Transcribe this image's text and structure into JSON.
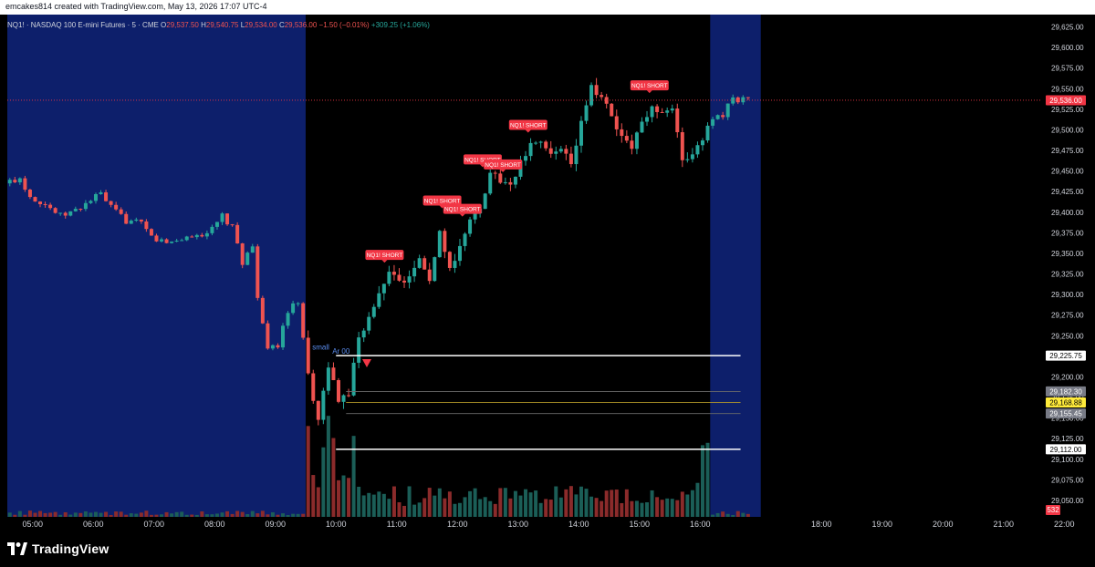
{
  "credit": "emcakes814 created with TradingView.com, May 13, 2026 17:07 UTC-4",
  "brand": "TradingView",
  "icons": {
    "logo": "tradingview-logo-icon",
    "signal_marker": "triangle-down-icon"
  },
  "colors": {
    "up": "#26a69a",
    "down": "#ef5350",
    "session_bg": "#0d1f6b",
    "price_tag": "#f23645",
    "yellow_tag": "#ffeb3b",
    "grey_tag": "#787b86"
  },
  "legend": {
    "symbol": "NQ1! · NASDAQ 100 E-mini Futures · 5 · CME",
    "o_label": "O",
    "o_value": "29,537.50",
    "h_label": "H",
    "h_value": "29,540.75",
    "l_label": "L",
    "l_value": "29,534.00",
    "c_label": "C",
    "c_value": "29,536.00",
    "change": "−1.50 (−0.01%)",
    "extra": "+309.25 (+1.06%)"
  },
  "chart_data": {
    "type": "candlestick",
    "symbol": "NQ1!",
    "interval_minutes": 5,
    "x_ticks": [
      "05:00",
      "06:00",
      "07:00",
      "08:00",
      "09:00",
      "10:00",
      "11:00",
      "12:00",
      "13:00",
      "14:00",
      "15:00",
      "16:00",
      "18:00",
      "19:00",
      "20:00",
      "21:00",
      "22:00"
    ],
    "y_ticks": [
      "29,625.00",
      "29,600.00",
      "29,575.00",
      "29,550.00",
      "29,525.00",
      "29,500.00",
      "29,475.00",
      "29,450.00",
      "29,425.00",
      "29,400.00",
      "29,375.00",
      "29,350.00",
      "29,325.00",
      "29,300.00",
      "29,275.00",
      "29,250.00",
      "29,225.00",
      "29,200.00",
      "29,175.00",
      "29,150.00",
      "29,125.00",
      "29,100.00",
      "29,075.00",
      "29,050.00"
    ],
    "ylim": [
      29030,
      29640
    ],
    "grid": false,
    "sessions": [
      {
        "start": "04:35",
        "end": "09:30",
        "shade": "extended"
      },
      {
        "start": "09:30",
        "end": "16:10",
        "shade": "regular"
      },
      {
        "start": "16:10",
        "end": "17:00",
        "shade": "extended"
      }
    ],
    "candles_outline": [
      {
        "time": "04:35",
        "price": 29435
      },
      {
        "time": "04:50",
        "price": 29442
      },
      {
        "time": "05:00",
        "price": 29420
      },
      {
        "time": "05:15",
        "price": 29410
      },
      {
        "time": "05:30",
        "price": 29395
      },
      {
        "time": "05:45",
        "price": 29402
      },
      {
        "time": "06:00",
        "price": 29415
      },
      {
        "time": "06:10",
        "price": 29422
      },
      {
        "time": "06:20",
        "price": 29405
      },
      {
        "time": "06:35",
        "price": 29390
      },
      {
        "time": "06:50",
        "price": 29385
      },
      {
        "time": "07:00",
        "price": 29370
      },
      {
        "time": "07:15",
        "price": 29362
      },
      {
        "time": "07:30",
        "price": 29368
      },
      {
        "time": "07:45",
        "price": 29372
      },
      {
        "time": "08:00",
        "price": 29378
      },
      {
        "time": "08:10",
        "price": 29395
      },
      {
        "time": "08:20",
        "price": 29380
      },
      {
        "time": "08:30",
        "price": 29340
      },
      {
        "time": "08:40",
        "price": 29358
      },
      {
        "time": "08:45",
        "price": 29300
      },
      {
        "time": "08:55",
        "price": 29230
      },
      {
        "time": "09:05",
        "price": 29240
      },
      {
        "time": "09:15",
        "price": 29280
      },
      {
        "time": "09:25",
        "price": 29290
      },
      {
        "time": "09:35",
        "price": 29200
      },
      {
        "time": "09:45",
        "price": 29150
      },
      {
        "time": "09:55",
        "price": 29215
      },
      {
        "time": "10:05",
        "price": 29170
      },
      {
        "time": "10:15",
        "price": 29180
      },
      {
        "time": "10:25",
        "price": 29250
      },
      {
        "time": "10:35",
        "price": 29270
      },
      {
        "time": "10:45",
        "price": 29300
      },
      {
        "time": "10:55",
        "price": 29330
      },
      {
        "time": "11:05",
        "price": 29315
      },
      {
        "time": "11:15",
        "price": 29320
      },
      {
        "time": "11:25",
        "price": 29340
      },
      {
        "time": "11:35",
        "price": 29320
      },
      {
        "time": "11:45",
        "price": 29375
      },
      {
        "time": "11:55",
        "price": 29330
      },
      {
        "time": "12:05",
        "price": 29360
      },
      {
        "time": "12:15",
        "price": 29395
      },
      {
        "time": "12:25",
        "price": 29400
      },
      {
        "time": "12:35",
        "price": 29445
      },
      {
        "time": "12:45",
        "price": 29440
      },
      {
        "time": "12:55",
        "price": 29430
      },
      {
        "time": "13:05",
        "price": 29460
      },
      {
        "time": "13:15",
        "price": 29480
      },
      {
        "time": "13:25",
        "price": 29482
      },
      {
        "time": "13:35",
        "price": 29470
      },
      {
        "time": "13:45",
        "price": 29480
      },
      {
        "time": "13:55",
        "price": 29460
      },
      {
        "time": "14:05",
        "price": 29510
      },
      {
        "time": "14:15",
        "price": 29550
      },
      {
        "time": "14:25",
        "price": 29540
      },
      {
        "time": "14:35",
        "price": 29520
      },
      {
        "time": "14:45",
        "price": 29490
      },
      {
        "time": "14:55",
        "price": 29475
      },
      {
        "time": "15:05",
        "price": 29510
      },
      {
        "time": "15:15",
        "price": 29525
      },
      {
        "time": "15:25",
        "price": 29522
      },
      {
        "time": "15:35",
        "price": 29530
      },
      {
        "time": "15:45",
        "price": 29462
      },
      {
        "time": "15:55",
        "price": 29468
      },
      {
        "time": "16:05",
        "price": 29490
      },
      {
        "time": "16:15",
        "price": 29515
      },
      {
        "time": "16:25",
        "price": 29520
      },
      {
        "time": "16:35",
        "price": 29538
      },
      {
        "time": "16:45",
        "price": 29537
      }
    ],
    "annotations": [
      {
        "text": "NQ1! SHORT",
        "time": "10:48",
        "price": 29342
      },
      {
        "text": "NQ1! SHORT",
        "time": "11:45",
        "price": 29408
      },
      {
        "text": "NQ1! SHORT",
        "time": "12:05",
        "price": 29398
      },
      {
        "text": "NQ1! SHORT",
        "time": "12:25",
        "price": 29458
      },
      {
        "text": "NQ1! SHORT",
        "time": "12:45",
        "price": 29452
      },
      {
        "text": "NQ1! SHORT",
        "time": "13:10",
        "price": 29500
      },
      {
        "text": "NQ1! SHORT",
        "time": "15:10",
        "price": 29548
      },
      {
        "text": "small",
        "time": "09:45",
        "price": 29233
      },
      {
        "text": "Ar 00",
        "time": "10:05",
        "price": 29228
      }
    ],
    "horizontal_levels": [
      {
        "price": 29225.75,
        "label": "29,225.75",
        "style": "white",
        "from": "10:00",
        "to": "16:40"
      },
      {
        "price": 29182.3,
        "label": "29,182.30",
        "style": "grey",
        "from": "10:10",
        "to": "16:40"
      },
      {
        "price": 29168.88,
        "label": "29,168.88",
        "style": "yellow",
        "from": "10:10",
        "to": "16:40"
      },
      {
        "price": 29155.45,
        "label": "29,155.45",
        "style": "grey",
        "from": "10:10",
        "to": "16:40"
      },
      {
        "price": 29112.0,
        "label": "29,112.00",
        "style": "white",
        "from": "10:00",
        "to": "16:40"
      }
    ],
    "last_price": {
      "price": 29536.0,
      "label": "29,536.00"
    },
    "volume_tag": "532"
  }
}
